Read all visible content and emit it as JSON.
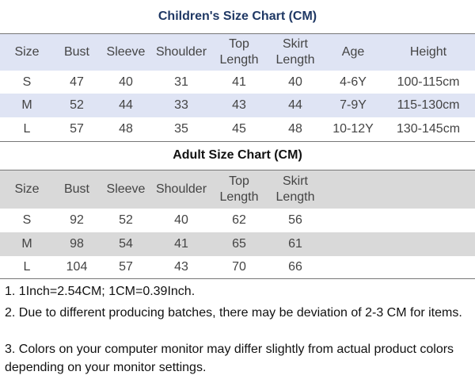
{
  "tables": [
    {
      "title": "Children's Size Chart (CM)",
      "header": [
        "Size",
        "Bust",
        "Sleeve",
        "Shoulder",
        "Top Length",
        "Skirt Length",
        "Age",
        "Height"
      ],
      "rows": [
        [
          "S",
          "47",
          "40",
          "31",
          "41",
          "40",
          "4-6Y",
          "100-115cm"
        ],
        [
          "M",
          "52",
          "44",
          "33",
          "43",
          "44",
          "7-9Y",
          "115-130cm"
        ],
        [
          "L",
          "57",
          "48",
          "35",
          "45",
          "48",
          "10-12Y",
          "130-145cm"
        ]
      ]
    },
    {
      "title": "Adult Size Chart (CM)",
      "header": [
        "Size",
        "Bust",
        "Sleeve",
        "Shoulder",
        "Top Length",
        "Skirt Length"
      ],
      "rows": [
        [
          "S",
          "92",
          "52",
          "40",
          "62",
          "56"
        ],
        [
          "M",
          "98",
          "54",
          "41",
          "65",
          "61"
        ],
        [
          "L",
          "104",
          "57",
          "43",
          "70",
          "66"
        ]
      ]
    }
  ],
  "notes": [
    "1. 1Inch=2.54CM; 1CM=0.39Inch.",
    "2. Due to different producing batches, there may be deviation of 2-3 CM for items.",
    "3. Colors on your computer monitor may differ slightly from actual product colors depending on your monitor settings."
  ]
}
